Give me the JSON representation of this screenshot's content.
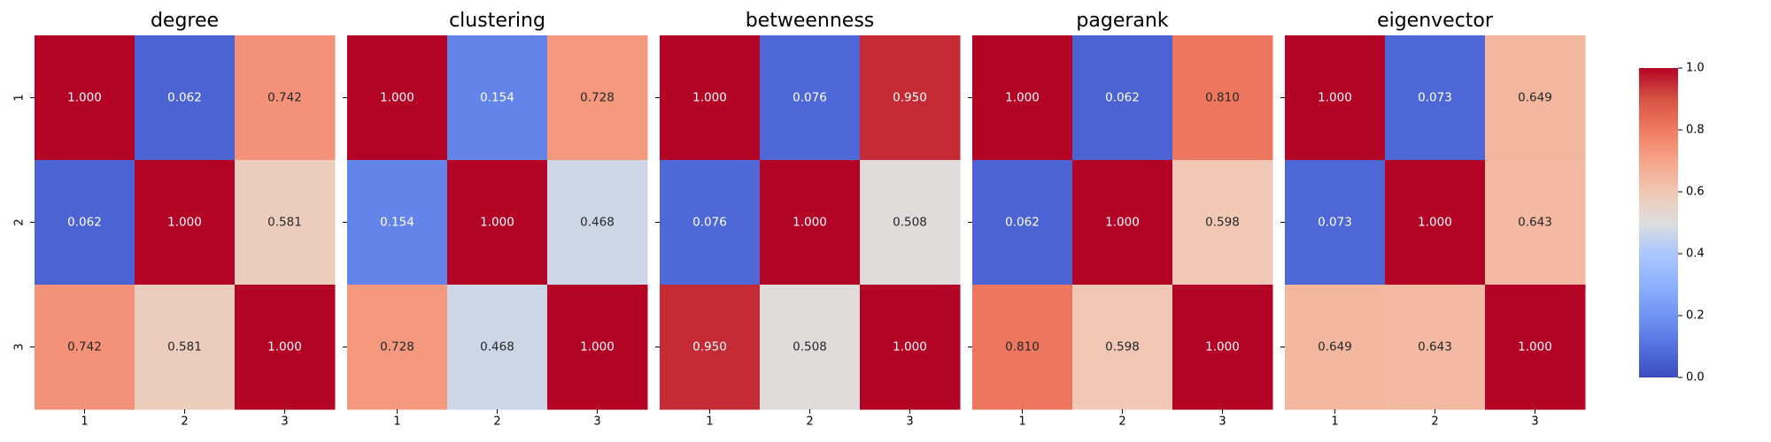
{
  "chart_data": {
    "type": "heatmap",
    "colormap": "coolwarm",
    "color_range": [
      0.0,
      1.0
    ],
    "colorbar": {
      "ticks": [
        "0.0",
        "0.2",
        "0.4",
        "0.6",
        "0.8",
        "1.0"
      ],
      "tick_values": [
        0.0,
        0.2,
        0.4,
        0.6,
        0.8,
        1.0
      ]
    },
    "panels": [
      {
        "title": "degree",
        "x_ticks": [
          "1",
          "2",
          "3"
        ],
        "y_ticks": [
          "1",
          "2",
          "3"
        ],
        "values": [
          [
            1.0,
            0.062,
            0.742
          ],
          [
            0.062,
            1.0,
            0.581
          ],
          [
            0.742,
            0.581,
            1.0
          ]
        ],
        "labels": [
          [
            "1.000",
            "0.062",
            "0.742"
          ],
          [
            "0.062",
            "1.000",
            "0.581"
          ],
          [
            "0.742",
            "0.581",
            "1.000"
          ]
        ]
      },
      {
        "title": "clustering",
        "x_ticks": [
          "1",
          "2",
          "3"
        ],
        "y_ticks": [],
        "values": [
          [
            1.0,
            0.154,
            0.728
          ],
          [
            0.154,
            1.0,
            0.468
          ],
          [
            0.728,
            0.468,
            1.0
          ]
        ],
        "labels": [
          [
            "1.000",
            "0.154",
            "0.728"
          ],
          [
            "0.154",
            "1.000",
            "0.468"
          ],
          [
            "0.728",
            "0.468",
            "1.000"
          ]
        ]
      },
      {
        "title": "betweenness",
        "x_ticks": [
          "1",
          "2",
          "3"
        ],
        "y_ticks": [],
        "values": [
          [
            1.0,
            0.076,
            0.95
          ],
          [
            0.076,
            1.0,
            0.508
          ],
          [
            0.95,
            0.508,
            1.0
          ]
        ],
        "labels": [
          [
            "1.000",
            "0.076",
            "0.950"
          ],
          [
            "0.076",
            "1.000",
            "0.508"
          ],
          [
            "0.950",
            "0.508",
            "1.000"
          ]
        ]
      },
      {
        "title": "pagerank",
        "x_ticks": [
          "1",
          "2",
          "3"
        ],
        "y_ticks": [],
        "values": [
          [
            1.0,
            0.062,
            0.81
          ],
          [
            0.062,
            1.0,
            0.598
          ],
          [
            0.81,
            0.598,
            1.0
          ]
        ],
        "labels": [
          [
            "1.000",
            "0.062",
            "0.810"
          ],
          [
            "0.062",
            "1.000",
            "0.598"
          ],
          [
            "0.810",
            "0.598",
            "1.000"
          ]
        ]
      },
      {
        "title": "eigenvector",
        "x_ticks": [
          "1",
          "2",
          "3"
        ],
        "y_ticks": [],
        "values": [
          [
            1.0,
            0.073,
            0.649
          ],
          [
            0.073,
            1.0,
            0.643
          ],
          [
            0.649,
            0.643,
            1.0
          ]
        ],
        "labels": [
          [
            "1.000",
            "0.073",
            "0.649"
          ],
          [
            "0.073",
            "1.000",
            "0.643"
          ],
          [
            "0.649",
            "0.643",
            "1.000"
          ]
        ]
      }
    ]
  }
}
